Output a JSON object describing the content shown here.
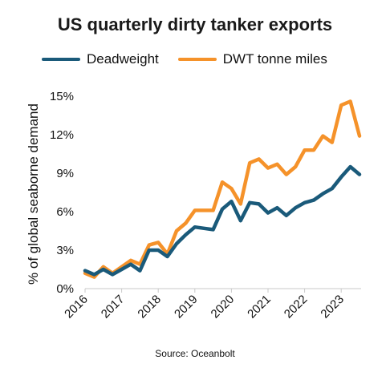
{
  "chart_data": {
    "type": "line",
    "title": "US quarterly dirty tanker exports",
    "ylabel": "% of global seaborne demand",
    "xlabel": "",
    "source": "Source: Oceanbolt",
    "x_tick_labels": [
      "2016",
      "2017",
      "2018",
      "2019",
      "2020",
      "2021",
      "2022",
      "2023"
    ],
    "y_tick_labels": [
      "0%",
      "3%",
      "6%",
      "9%",
      "12%",
      "15%"
    ],
    "ylim": [
      0,
      15
    ],
    "grid": false,
    "legend_position": "top",
    "x": [
      "2016-Q1",
      "2016-Q2",
      "2016-Q3",
      "2016-Q4",
      "2017-Q1",
      "2017-Q2",
      "2017-Q3",
      "2017-Q4",
      "2018-Q1",
      "2018-Q2",
      "2018-Q3",
      "2018-Q4",
      "2019-Q1",
      "2019-Q2",
      "2019-Q3",
      "2019-Q4",
      "2020-Q1",
      "2020-Q2",
      "2020-Q3",
      "2020-Q4",
      "2021-Q1",
      "2021-Q2",
      "2021-Q3",
      "2021-Q4",
      "2022-Q1",
      "2022-Q2",
      "2022-Q3",
      "2022-Q4",
      "2023-Q1",
      "2023-Q2",
      "2023-Q3"
    ],
    "series": [
      {
        "name": "Deadweight",
        "color": "#1a5a7a",
        "values": [
          1.4,
          1.1,
          1.5,
          1.1,
          1.5,
          1.9,
          1.4,
          3.0,
          3.0,
          2.5,
          3.5,
          4.2,
          4.8,
          4.7,
          4.6,
          6.2,
          6.8,
          5.3,
          6.7,
          6.6,
          5.9,
          6.3,
          5.7,
          6.3,
          6.7,
          6.9,
          7.4,
          7.8,
          8.7,
          9.5,
          8.9
        ]
      },
      {
        "name": "DWT tonne miles",
        "color": "#f5922a",
        "values": [
          1.2,
          0.9,
          1.7,
          1.2,
          1.7,
          2.2,
          1.9,
          3.4,
          3.6,
          2.7,
          4.5,
          5.1,
          6.1,
          6.1,
          6.1,
          8.3,
          7.8,
          6.6,
          9.8,
          10.1,
          9.4,
          9.7,
          8.9,
          9.5,
          10.8,
          10.8,
          11.9,
          11.4,
          14.3,
          14.6,
          11.9
        ]
      }
    ]
  }
}
